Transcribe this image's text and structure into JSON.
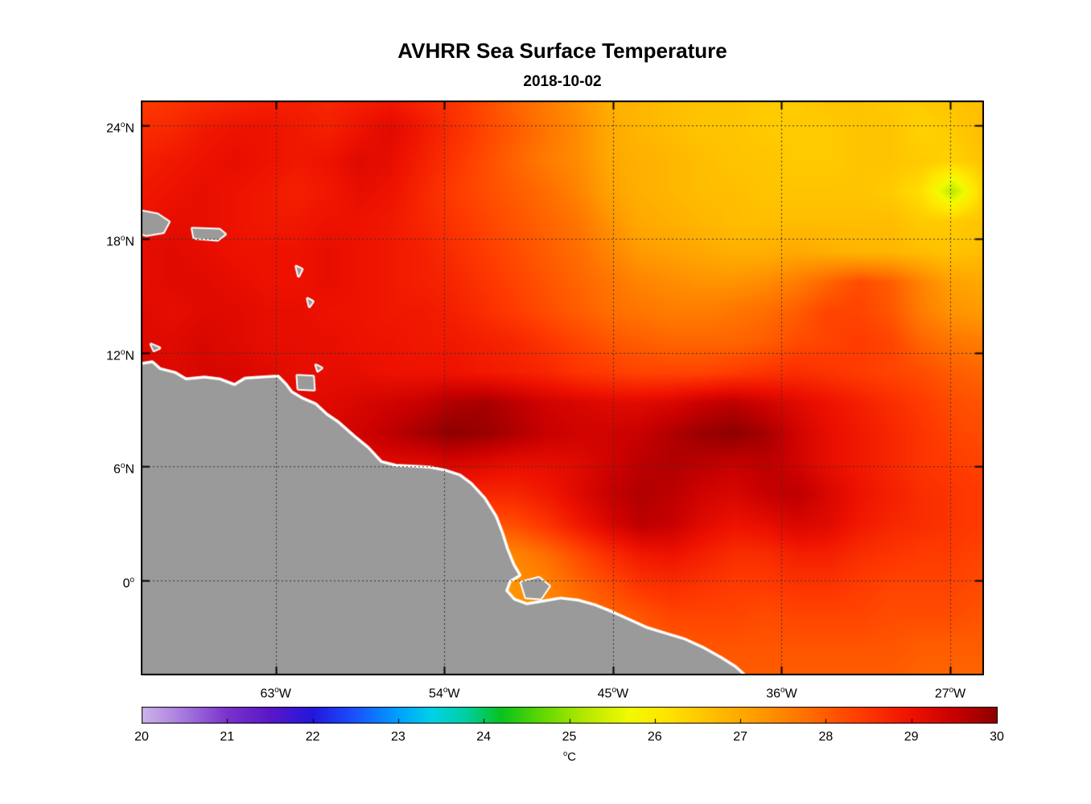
{
  "title": "AVHRR Sea Surface Temperature",
  "subtitle": "2018-10-02",
  "chart_data": {
    "type": "heatmap",
    "title": "AVHRR Sea Surface Temperature",
    "subtitle": "2018-10-02",
    "grid": true,
    "lon_range": [
      -70.2,
      -25.2
    ],
    "lat_range": [
      -5.0,
      25.3
    ],
    "x_ticks": [
      {
        "lon": -63,
        "label": "63°W"
      },
      {
        "lon": -54,
        "label": "54°W"
      },
      {
        "lon": -45,
        "label": "45°W"
      },
      {
        "lon": -36,
        "label": "36°W"
      },
      {
        "lon": -27,
        "label": "27°W"
      }
    ],
    "y_ticks": [
      {
        "lat": 24,
        "label": "24°N"
      },
      {
        "lat": 18,
        "label": "18°N"
      },
      {
        "lat": 12,
        "label": "12°N"
      },
      {
        "lat": 6,
        "label": "6°N"
      },
      {
        "lat": 0,
        "label": "0°"
      }
    ],
    "colorbar": {
      "min": 20,
      "max": 30,
      "ticks": [
        20,
        21,
        22,
        23,
        24,
        25,
        26,
        27,
        28,
        29,
        30
      ],
      "label": "°C"
    },
    "colormap_stops": [
      [
        20.0,
        "#cdb6e8"
      ],
      [
        20.5,
        "#a678dd"
      ],
      [
        21.0,
        "#7a33cc"
      ],
      [
        21.5,
        "#5a17c8"
      ],
      [
        22.0,
        "#2317dd"
      ],
      [
        22.5,
        "#1a52ff"
      ],
      [
        23.0,
        "#00a1ff"
      ],
      [
        23.4,
        "#00d2e6"
      ],
      [
        23.8,
        "#00cfa0"
      ],
      [
        24.2,
        "#09c31e"
      ],
      [
        24.7,
        "#64d900"
      ],
      [
        25.2,
        "#b8ea00"
      ],
      [
        25.7,
        "#f2fa00"
      ],
      [
        26.1,
        "#ffe600"
      ],
      [
        26.6,
        "#ffc400"
      ],
      [
        27.2,
        "#ff9b00"
      ],
      [
        27.8,
        "#ff6d00"
      ],
      [
        28.4,
        "#ff3b00"
      ],
      [
        29.0,
        "#ee1100"
      ],
      [
        29.5,
        "#c80000"
      ],
      [
        30.0,
        "#8e0000"
      ]
    ],
    "land_color": "#9a9a9a",
    "coast_color": "#ffffff",
    "grid_color": "#333333",
    "frame_color": "#000000",
    "sst_grid": {
      "units": "degC",
      "lon_start": -70.2,
      "lon_end": -25.2,
      "lat_start": 25.3,
      "lat_end": -5.0,
      "ncols": 28,
      "nrows": 20,
      "values": [
        [
          28.4,
          28.5,
          28.6,
          28.7,
          28.8,
          28.8,
          28.7,
          28.8,
          28.9,
          28.7,
          28.5,
          28.2,
          27.9,
          27.6,
          27.3,
          26.9,
          26.8,
          26.7,
          26.6,
          26.6,
          26.5,
          26.5,
          26.6,
          26.6,
          26.5,
          26.5,
          26.6,
          26.7
        ],
        [
          28.6,
          28.7,
          28.9,
          29.0,
          29.0,
          28.9,
          28.8,
          29.0,
          29.2,
          28.9,
          28.6,
          28.3,
          28.0,
          27.7,
          27.4,
          27.0,
          26.8,
          26.7,
          26.6,
          26.6,
          26.5,
          26.5,
          26.5,
          26.6,
          26.6,
          26.4,
          26.5,
          26.7
        ],
        [
          28.8,
          28.9,
          29.0,
          29.1,
          29.0,
          28.9,
          29.0,
          29.2,
          29.1,
          28.8,
          28.5,
          28.2,
          27.9,
          27.6,
          27.4,
          27.0,
          26.9,
          26.8,
          26.7,
          26.6,
          26.6,
          26.5,
          26.5,
          26.6,
          26.6,
          26.5,
          26.4,
          26.6
        ],
        [
          28.9,
          29.0,
          29.1,
          29.0,
          28.9,
          28.8,
          28.9,
          29.1,
          29.0,
          28.7,
          28.4,
          28.2,
          28.0,
          27.8,
          27.5,
          27.1,
          26.9,
          26.8,
          26.7,
          26.7,
          26.6,
          26.6,
          26.6,
          26.6,
          26.5,
          26.2,
          25.2,
          26.4
        ],
        [
          29.0,
          29.1,
          29.1,
          29.0,
          28.9,
          28.9,
          29.0,
          29.0,
          28.9,
          28.7,
          28.5,
          28.3,
          28.1,
          27.9,
          27.7,
          27.3,
          27.0,
          26.9,
          26.8,
          26.7,
          26.7,
          26.7,
          26.7,
          26.7,
          26.7,
          26.5,
          26.5,
          26.6
        ],
        [
          29.1,
          29.2,
          29.1,
          29.0,
          29.0,
          29.0,
          29.1,
          29.0,
          28.9,
          28.8,
          28.6,
          28.4,
          28.2,
          28.0,
          27.8,
          27.5,
          27.2,
          27.1,
          27.0,
          26.9,
          26.9,
          27.0,
          26.9,
          26.8,
          26.8,
          26.7,
          26.6,
          26.7
        ],
        [
          29.1,
          29.2,
          29.2,
          29.1,
          29.0,
          29.0,
          29.1,
          29.0,
          28.9,
          28.8,
          28.7,
          28.5,
          28.3,
          28.1,
          27.9,
          27.7,
          27.5,
          27.4,
          27.3,
          27.3,
          27.4,
          27.6,
          27.9,
          28.2,
          28.0,
          27.5,
          27.1,
          27.0
        ],
        [
          29.2,
          29.1,
          29.2,
          29.2,
          29.1,
          29.1,
          29.0,
          29.0,
          28.9,
          28.9,
          28.8,
          28.6,
          28.4,
          28.2,
          28.0,
          27.8,
          27.7,
          27.6,
          27.6,
          27.7,
          27.8,
          28.0,
          28.3,
          28.3,
          28.1,
          27.6,
          27.3,
          27.2
        ],
        [
          29.2,
          29.2,
          29.3,
          29.2,
          29.1,
          29.1,
          29.1,
          29.0,
          29.0,
          28.9,
          28.9,
          28.8,
          28.7,
          28.5,
          28.3,
          28.1,
          28.0,
          27.9,
          27.9,
          27.9,
          28.0,
          28.2,
          28.3,
          28.4,
          28.3,
          27.9,
          27.7,
          27.6
        ],
        [
          29.3,
          29.2,
          29.3,
          29.3,
          29.2,
          29.1,
          29.1,
          29.1,
          29.0,
          29.0,
          29.0,
          28.9,
          28.8,
          28.7,
          28.5,
          28.4,
          28.3,
          28.3,
          28.3,
          28.4,
          28.5,
          28.6,
          28.5,
          28.4,
          28.3,
          28.2,
          28.0,
          27.9
        ],
        [
          29.3,
          29.3,
          29.3,
          29.2,
          29.2,
          29.2,
          29.2,
          29.3,
          29.4,
          29.5,
          29.7,
          29.8,
          29.6,
          29.4,
          29.3,
          29.2,
          29.2,
          29.3,
          29.5,
          29.6,
          29.4,
          29.2,
          29.0,
          28.8,
          28.6,
          28.4,
          28.2,
          28.1
        ],
        [
          29.2,
          29.2,
          29.2,
          29.2,
          29.2,
          29.2,
          29.3,
          29.4,
          29.6,
          29.8,
          30.0,
          29.9,
          29.7,
          29.5,
          29.4,
          29.4,
          29.5,
          29.7,
          29.9,
          30.0,
          29.8,
          29.4,
          29.1,
          28.9,
          28.7,
          28.5,
          28.3,
          28.2
        ],
        [
          28.9,
          28.9,
          29.0,
          29.0,
          29.0,
          29.1,
          29.1,
          29.2,
          29.2,
          29.2,
          29.3,
          29.2,
          29.1,
          29.1,
          29.2,
          29.4,
          29.6,
          29.7,
          29.6,
          29.5,
          29.6,
          29.4,
          29.1,
          28.9,
          28.7,
          28.5,
          28.4,
          28.3
        ],
        [
          28.8,
          28.8,
          28.8,
          28.9,
          28.9,
          28.9,
          29.0,
          29.0,
          29.0,
          28.9,
          28.8,
          28.7,
          28.7,
          28.9,
          29.2,
          29.5,
          29.7,
          29.6,
          29.4,
          29.3,
          29.5,
          29.6,
          29.3,
          29.0,
          28.8,
          28.6,
          28.5,
          28.4
        ],
        [
          28.6,
          28.6,
          28.6,
          28.6,
          28.7,
          28.7,
          28.7,
          28.7,
          28.6,
          28.4,
          28.2,
          28.1,
          28.2,
          28.5,
          28.9,
          29.3,
          29.6,
          29.5,
          29.2,
          29.0,
          29.1,
          29.3,
          29.2,
          28.9,
          28.7,
          28.6,
          28.5,
          28.4
        ],
        [
          28.3,
          28.3,
          28.3,
          28.3,
          28.3,
          28.3,
          28.2,
          28.1,
          27.9,
          27.7,
          27.5,
          27.4,
          27.5,
          27.8,
          28.2,
          28.6,
          28.9,
          29.0,
          28.8,
          28.6,
          28.6,
          28.8,
          28.8,
          28.6,
          28.5,
          28.4,
          28.4,
          28.3
        ],
        [
          28.1,
          28.1,
          28.1,
          28.0,
          28.0,
          27.9,
          27.8,
          27.6,
          27.4,
          27.3,
          27.2,
          27.2,
          27.3,
          27.5,
          27.9,
          28.2,
          28.5,
          28.6,
          28.5,
          28.4,
          28.4,
          28.5,
          28.5,
          28.4,
          28.3,
          28.3,
          28.3,
          28.2
        ],
        [
          27.9,
          27.9,
          27.9,
          27.8,
          27.8,
          27.7,
          27.6,
          27.5,
          27.4,
          27.3,
          27.2,
          27.2,
          27.3,
          27.4,
          27.6,
          27.9,
          28.1,
          28.3,
          28.3,
          28.3,
          28.2,
          28.3,
          28.3,
          28.3,
          28.2,
          28.2,
          28.2,
          28.1
        ],
        [
          27.8,
          27.8,
          27.8,
          27.7,
          27.7,
          27.6,
          27.6,
          27.5,
          27.4,
          27.3,
          27.3,
          27.3,
          27.3,
          27.4,
          27.5,
          27.7,
          27.9,
          28.0,
          28.1,
          28.1,
          28.1,
          28.1,
          28.1,
          28.1,
          28.1,
          28.0,
          28.0,
          28.0
        ],
        [
          27.7,
          27.7,
          27.7,
          27.7,
          27.6,
          27.6,
          27.5,
          27.5,
          27.4,
          27.4,
          27.3,
          27.3,
          27.3,
          27.4,
          27.5,
          27.6,
          27.8,
          27.9,
          28.0,
          28.0,
          28.0,
          28.0,
          28.0,
          28.0,
          28.0,
          27.9,
          27.9,
          27.9
        ]
      ]
    },
    "land_polygons": [
      {
        "name": "south-america-northeast-coast",
        "type": "continent",
        "points": [
          [
            -70.6,
            11.3
          ],
          [
            -69.6,
            11.45
          ],
          [
            -69.2,
            11.1
          ],
          [
            -68.4,
            10.9
          ],
          [
            -67.8,
            10.55
          ],
          [
            -66.8,
            10.65
          ],
          [
            -66.0,
            10.55
          ],
          [
            -65.2,
            10.25
          ],
          [
            -64.6,
            10.6
          ],
          [
            -63.8,
            10.65
          ],
          [
            -62.9,
            10.7
          ],
          [
            -62.5,
            10.3
          ],
          [
            -62.2,
            9.9
          ],
          [
            -61.6,
            9.55
          ],
          [
            -60.9,
            9.25
          ],
          [
            -60.3,
            8.7
          ],
          [
            -59.7,
            8.3
          ],
          [
            -58.9,
            7.6
          ],
          [
            -58.1,
            6.95
          ],
          [
            -57.4,
            6.2
          ],
          [
            -56.6,
            6.0
          ],
          [
            -55.7,
            5.95
          ],
          [
            -54.8,
            5.9
          ],
          [
            -54.0,
            5.75
          ],
          [
            -53.2,
            5.5
          ],
          [
            -52.6,
            5.05
          ],
          [
            -51.9,
            4.3
          ],
          [
            -51.3,
            3.35
          ],
          [
            -50.95,
            2.45
          ],
          [
            -50.7,
            1.65
          ],
          [
            -50.35,
            0.8
          ],
          [
            -50.05,
            0.3
          ],
          [
            -50.55,
            0.0
          ],
          [
            -50.75,
            -0.55
          ],
          [
            -50.3,
            -1.05
          ],
          [
            -49.6,
            -1.3
          ],
          [
            -48.7,
            -1.15
          ],
          [
            -47.8,
            -1.0
          ],
          [
            -46.9,
            -1.1
          ],
          [
            -46.0,
            -1.35
          ],
          [
            -45.1,
            -1.7
          ],
          [
            -44.2,
            -2.1
          ],
          [
            -43.2,
            -2.55
          ],
          [
            -42.2,
            -2.85
          ],
          [
            -41.2,
            -3.15
          ],
          [
            -40.2,
            -3.6
          ],
          [
            -39.3,
            -4.1
          ],
          [
            -38.5,
            -4.6
          ],
          [
            -37.6,
            -5.4
          ],
          [
            -70.6,
            -5.6
          ]
        ]
      },
      {
        "name": "hispaniola-east",
        "type": "island",
        "points": [
          [
            -70.6,
            19.55
          ],
          [
            -69.3,
            19.3
          ],
          [
            -68.7,
            18.9
          ],
          [
            -69.0,
            18.35
          ],
          [
            -69.9,
            18.2
          ],
          [
            -70.6,
            18.4
          ]
        ]
      },
      {
        "name": "puerto-rico",
        "type": "island",
        "points": [
          [
            -67.45,
            18.55
          ],
          [
            -66.0,
            18.5
          ],
          [
            -65.7,
            18.25
          ],
          [
            -66.1,
            17.95
          ],
          [
            -67.35,
            18.05
          ]
        ]
      },
      {
        "name": "guadeloupe",
        "type": "island",
        "points": [
          [
            -61.9,
            16.55
          ],
          [
            -61.6,
            16.4
          ],
          [
            -61.78,
            16.05
          ]
        ]
      },
      {
        "name": "martinique",
        "type": "island",
        "points": [
          [
            -61.3,
            14.85
          ],
          [
            -61.02,
            14.7
          ],
          [
            -61.2,
            14.45
          ]
        ]
      },
      {
        "name": "curacao",
        "type": "island",
        "points": [
          [
            -69.65,
            12.45
          ],
          [
            -69.2,
            12.25
          ],
          [
            -69.5,
            12.12
          ]
        ]
      },
      {
        "name": "tobago",
        "type": "island",
        "points": [
          [
            -60.85,
            11.35
          ],
          [
            -60.55,
            11.2
          ],
          [
            -60.75,
            11.05
          ]
        ]
      },
      {
        "name": "trinidad",
        "type": "island",
        "points": [
          [
            -61.85,
            10.8
          ],
          [
            -61.0,
            10.75
          ],
          [
            -60.95,
            10.05
          ],
          [
            -61.8,
            10.1
          ]
        ]
      },
      {
        "name": "marajo",
        "type": "island",
        "points": [
          [
            -49.9,
            -0.1
          ],
          [
            -48.95,
            0.15
          ],
          [
            -48.4,
            -0.3
          ],
          [
            -48.85,
            -0.95
          ],
          [
            -49.65,
            -0.9
          ]
        ]
      }
    ]
  }
}
